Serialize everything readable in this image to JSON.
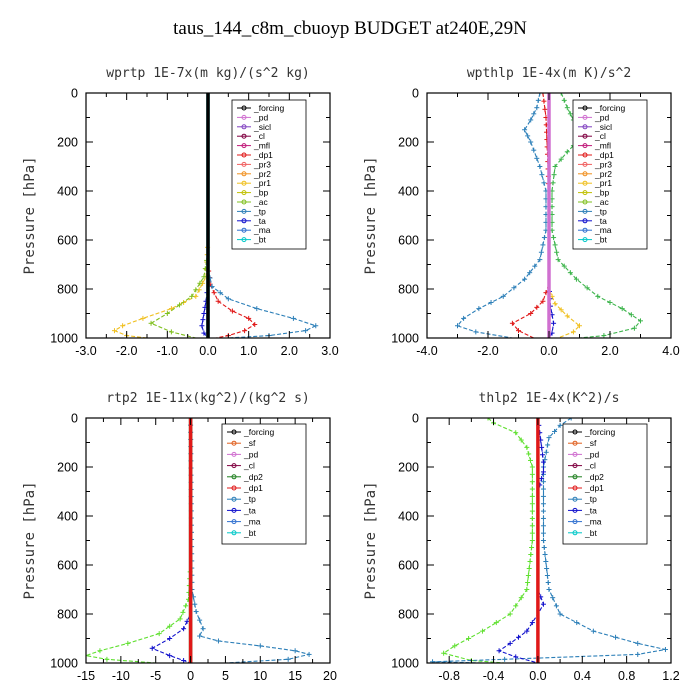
{
  "page_title": "taus_144_c8m_cbuoyp  BUDGET at240E,29N",
  "chart_data": [
    {
      "type": "line",
      "title": "wprtp   1E-7x(m kg)/(s^2 kg)",
      "ylabel": "Pressure [hPa]",
      "xlim": [
        -3.0,
        3.0
      ],
      "ylim": [
        1000,
        0
      ],
      "xticks": [
        -3.0,
        -2.0,
        -1.0,
        0.0,
        1.0,
        2.0,
        3.0
      ],
      "xtick_labels": [
        "-3.0",
        "-2.0",
        "-1.0",
        "0.0",
        "1.0",
        "2.0",
        "3.0"
      ],
      "yticks": [
        0,
        200,
        400,
        600,
        800,
        1000
      ],
      "ytick_labels": [
        "0",
        "200",
        "400",
        "600",
        "800",
        "1000"
      ],
      "legend_position": "top-right",
      "legend": [
        "_forcing",
        "_pd",
        "_sicl",
        "_cl",
        "_mfl",
        "_dp1",
        "_pr3",
        "_pr2",
        "_pr1",
        "_bp",
        "_ac",
        "_tp",
        "_ta",
        "_ma",
        "_bt"
      ],
      "series": [
        {
          "name": "_pr1",
          "color": "#f0c020",
          "points": [
            [
              0,
              0
            ],
            [
              0,
              600
            ],
            [
              -0.05,
              750
            ],
            [
              -0.3,
              830
            ],
            [
              -0.9,
              880
            ],
            [
              -1.6,
              920
            ],
            [
              -2.1,
              950
            ],
            [
              -2.3,
              970
            ],
            [
              -2.0,
              990
            ],
            [
              -1.5,
              1000
            ]
          ]
        },
        {
          "name": "_ac",
          "color": "#80c020",
          "points": [
            [
              0,
              0
            ],
            [
              0,
              650
            ],
            [
              -0.1,
              750
            ],
            [
              -0.4,
              830
            ],
            [
              -1.0,
              900
            ],
            [
              -1.4,
              940
            ],
            [
              -0.9,
              975
            ],
            [
              -0.3,
              1000
            ]
          ]
        },
        {
          "name": "_dp1",
          "color": "#e01818",
          "points": [
            [
              0,
              0
            ],
            [
              0,
              700
            ],
            [
              0.05,
              780
            ],
            [
              0.25,
              850
            ],
            [
              0.6,
              890
            ],
            [
              1.0,
              920
            ],
            [
              1.15,
              945
            ],
            [
              0.9,
              970
            ],
            [
              0.5,
              990
            ],
            [
              0.2,
              1000
            ]
          ]
        },
        {
          "name": "_tp",
          "color": "#2c7fb8",
          "points": [
            [
              0,
              0
            ],
            [
              0,
              720
            ],
            [
              0.1,
              790
            ],
            [
              0.5,
              840
            ],
            [
              1.2,
              880
            ],
            [
              2.1,
              920
            ],
            [
              2.65,
              950
            ],
            [
              2.4,
              970
            ],
            [
              1.5,
              990
            ],
            [
              0.5,
              1000
            ]
          ]
        },
        {
          "name": "_ta",
          "color": "#1010cc",
          "points": [
            [
              0,
              0
            ],
            [
              0,
              780
            ],
            [
              -0.05,
              850
            ],
            [
              -0.1,
              900
            ],
            [
              -0.15,
              950
            ],
            [
              -0.1,
              980
            ],
            [
              0,
              1000
            ]
          ]
        },
        {
          "name": "_bt",
          "color": "#00c8c8",
          "points": [
            [
              0,
              0
            ],
            [
              0,
              1000
            ]
          ]
        },
        {
          "name": "_forcing",
          "color": "#000000",
          "points": [
            [
              0,
              0
            ],
            [
              0,
              1000
            ]
          ]
        }
      ]
    },
    {
      "type": "line",
      "title": "wpthlp   1E-4x(m K)/s^2",
      "ylabel": "Pressure [hPa]",
      "xlim": [
        -4.0,
        4.0
      ],
      "ylim": [
        1000,
        0
      ],
      "xticks": [
        -4.0,
        -2.0,
        0.0,
        2.0,
        4.0
      ],
      "xtick_labels": [
        "-4.0",
        "-2.0",
        "0.0",
        "2.0",
        "4.0"
      ],
      "yticks": [
        0,
        200,
        400,
        600,
        800,
        1000
      ],
      "ytick_labels": [
        "0",
        "200",
        "400",
        "600",
        "800",
        "1000"
      ],
      "legend_position": "top-right",
      "legend": [
        "_forcing",
        "_pd",
        "_sicl",
        "_cl",
        "_mfl",
        "_dp1",
        "_pr3",
        "_pr2",
        "_pr1",
        "_bp",
        "_ac",
        "_tp",
        "_ta",
        "_ma",
        "_bt"
      ],
      "series": [
        {
          "name": "_ac",
          "color": "#3cb44b",
          "points": [
            [
              0.4,
              0
            ],
            [
              0.5,
              30
            ],
            [
              0.6,
              60
            ],
            [
              0.8,
              110
            ],
            [
              1.0,
              150
            ],
            [
              1.0,
              190
            ],
            [
              0.6,
              240
            ],
            [
              0.2,
              300
            ],
            [
              0.1,
              400
            ],
            [
              0.1,
              560
            ],
            [
              0.3,
              680
            ],
            [
              0.9,
              760
            ],
            [
              1.6,
              830
            ],
            [
              2.4,
              880
            ],
            [
              3.0,
              930
            ],
            [
              2.8,
              960
            ],
            [
              1.8,
              990
            ],
            [
              1.0,
              1000
            ]
          ]
        },
        {
          "name": "_tp",
          "color": "#2c7fb8",
          "points": [
            [
              -0.3,
              0
            ],
            [
              -0.4,
              60
            ],
            [
              -0.6,
              110
            ],
            [
              -0.8,
              150
            ],
            [
              -0.6,
              200
            ],
            [
              -0.3,
              300
            ],
            [
              -0.1,
              400
            ],
            [
              -0.1,
              560
            ],
            [
              -0.3,
              680
            ],
            [
              -0.8,
              760
            ],
            [
              -1.5,
              830
            ],
            [
              -2.3,
              880
            ],
            [
              -2.8,
              920
            ],
            [
              -3.0,
              950
            ],
            [
              -2.4,
              975
            ],
            [
              -1.2,
              1000
            ]
          ]
        },
        {
          "name": "_dp1",
          "color": "#e01818",
          "points": [
            [
              -0.2,
              0
            ],
            [
              -0.1,
              100
            ],
            [
              0,
              400
            ],
            [
              0,
              780
            ],
            [
              -0.2,
              850
            ],
            [
              -0.6,
              900
            ],
            [
              -1.2,
              940
            ],
            [
              -1.0,
              970
            ],
            [
              -0.5,
              1000
            ]
          ]
        },
        {
          "name": "_pr1",
          "color": "#f0c020",
          "points": [
            [
              0,
              0
            ],
            [
              0,
              800
            ],
            [
              0.2,
              860
            ],
            [
              0.6,
              910
            ],
            [
              1.0,
              950
            ],
            [
              0.8,
              975
            ],
            [
              0.3,
              1000
            ]
          ]
        },
        {
          "name": "_ta",
          "color": "#1010cc",
          "points": [
            [
              0,
              0
            ],
            [
              0,
              780
            ],
            [
              0.05,
              870
            ],
            [
              0.15,
              940
            ],
            [
              0.1,
              980
            ],
            [
              0,
              1000
            ]
          ]
        },
        {
          "name": "_forcing",
          "color": "#d070d0",
          "points": [
            [
              0,
              0
            ],
            [
              0,
              1000
            ]
          ]
        }
      ]
    },
    {
      "type": "line",
      "title": "rtp2   1E-11x(kg^2)/(kg^2 s)",
      "ylabel": "Pressure [hPa]",
      "xlim": [
        -15,
        20
      ],
      "ylim": [
        1000,
        0
      ],
      "xticks": [
        -15,
        -10,
        -5,
        0,
        5,
        10,
        15,
        20
      ],
      "xtick_labels": [
        "-15",
        "-10",
        "-5",
        "0",
        "5",
        "10",
        "15",
        "20"
      ],
      "yticks": [
        0,
        200,
        400,
        600,
        800,
        1000
      ],
      "ytick_labels": [
        "0",
        "200",
        "400",
        "600",
        "800",
        "1000"
      ],
      "legend_position": "top-right",
      "legend": [
        "_forcing",
        "_sf",
        "_pd",
        "_cl",
        "_dp2",
        "_dp1",
        "_tp",
        "_ta",
        "_ma",
        "_bt"
      ],
      "series": [
        {
          "name": "_dp1",
          "color": "#60e030",
          "points": [
            [
              0,
              0
            ],
            [
              0,
              600
            ],
            [
              -0.3,
              740
            ],
            [
              -1.5,
              820
            ],
            [
              -4.5,
              880
            ],
            [
              -9,
              920
            ],
            [
              -13,
              950
            ],
            [
              -15,
              970
            ],
            [
              -12,
              985
            ],
            [
              -5,
              1000
            ]
          ]
        },
        {
          "name": "_tp",
          "color": "#2c7fb8",
          "points": [
            [
              0,
              0
            ],
            [
              0.2,
              700
            ],
            [
              0.8,
              790
            ],
            [
              1.8,
              860
            ],
            [
              1.3,
              890
            ],
            [
              4,
              910
            ],
            [
              10,
              930
            ],
            [
              15,
              950
            ],
            [
              17,
              965
            ],
            [
              14,
              985
            ],
            [
              5,
              1000
            ]
          ]
        },
        {
          "name": "_ta",
          "color": "#1010cc",
          "points": [
            [
              0,
              0
            ],
            [
              0,
              800
            ],
            [
              -1,
              860
            ],
            [
              -3,
              900
            ],
            [
              -5.5,
              940
            ],
            [
              -3,
              970
            ],
            [
              -1,
              990
            ],
            [
              0,
              1000
            ]
          ]
        },
        {
          "name": "_dp2",
          "color": "#208020",
          "points": [
            [
              0,
              0
            ],
            [
              0,
              1000
            ]
          ]
        },
        {
          "name": "_forcing",
          "color": "#e01818",
          "points": [
            [
              0,
              0
            ],
            [
              0,
              1000
            ]
          ]
        }
      ]
    },
    {
      "type": "line",
      "title": "thlp2   1E-4x(K^2)/s",
      "ylabel": "Pressure [hPa]",
      "xlim": [
        -1.0,
        1.2
      ],
      "ylim": [
        1000,
        0
      ],
      "xticks": [
        -0.8,
        -0.4,
        0.0,
        0.4,
        0.8,
        1.2
      ],
      "xtick_labels": [
        "-0.8",
        "-0.4",
        "0.0",
        "0.4",
        "0.8",
        "1.2"
      ],
      "yticks": [
        0,
        200,
        400,
        600,
        800,
        1000
      ],
      "ytick_labels": [
        "0",
        "200",
        "400",
        "600",
        "800",
        "1000"
      ],
      "legend_position": "top-right",
      "legend": [
        "_forcing",
        "_sf",
        "_pd",
        "_cl",
        "_dp2",
        "_dp1",
        "_tp",
        "_ta",
        "_ma",
        "_bt"
      ],
      "series": [
        {
          "name": "_dp1",
          "color": "#60e030",
          "points": [
            [
              -0.45,
              0
            ],
            [
              -0.4,
              20
            ],
            [
              -0.2,
              60
            ],
            [
              -0.1,
              120
            ],
            [
              -0.05,
              200
            ],
            [
              -0.05,
              500
            ],
            [
              -0.1,
              700
            ],
            [
              -0.25,
              800
            ],
            [
              -0.5,
              870
            ],
            [
              -0.75,
              930
            ],
            [
              -0.85,
              960
            ],
            [
              -0.6,
              990
            ],
            [
              -0.3,
              1000
            ]
          ]
        },
        {
          "name": "_tp",
          "color": "#2c7fb8",
          "points": [
            [
              0.3,
              0
            ],
            [
              0.2,
              30
            ],
            [
              0.1,
              80
            ],
            [
              0.05,
              200
            ],
            [
              0.05,
              500
            ],
            [
              0.1,
              700
            ],
            [
              0.2,
              800
            ],
            [
              0.5,
              870
            ],
            [
              0.9,
              920
            ],
            [
              1.15,
              945
            ],
            [
              0.9,
              965
            ],
            [
              -0.3,
              985
            ],
            [
              -0.95,
              995
            ],
            [
              -0.5,
              1000
            ]
          ]
        },
        {
          "name": "_ta",
          "color": "#1010cc",
          "points": [
            [
              0,
              0
            ],
            [
              0.05,
              180
            ],
            [
              0.05,
              220
            ],
            [
              0,
              300
            ],
            [
              0,
              700
            ],
            [
              0.05,
              760
            ],
            [
              0,
              800
            ],
            [
              -0.1,
              870
            ],
            [
              -0.25,
              920
            ],
            [
              -0.35,
              950
            ],
            [
              -0.2,
              975
            ],
            [
              0,
              1000
            ]
          ]
        },
        {
          "name": "_forcing",
          "color": "#e01818",
          "points": [
            [
              0,
              0
            ],
            [
              0,
              1000
            ]
          ]
        }
      ]
    }
  ]
}
